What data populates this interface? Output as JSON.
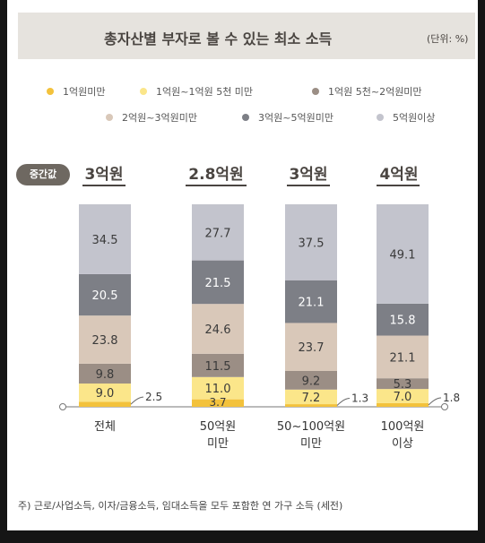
{
  "title": "총자산별 부자로 볼 수 있는 최소 소득",
  "unit": "(단위: %)",
  "median_label": "중간값",
  "footnote": "주) 근로/사업소득, 이자/금융소득, 임대소득을 모두 포함한 연 가구 소득 (세전)",
  "colors": {
    "title_bg": "#e6e3de",
    "c0": "#f3c23c",
    "c1": "#fbe68a",
    "c2": "#9b8e85",
    "c3": "#d9c8b9",
    "c4": "#7d7f86",
    "c5": "#c3c4cd"
  },
  "chart_data": {
    "type": "bar",
    "stacked": true,
    "orientation": "vertical",
    "categories": [
      "전체",
      "50억원 미만",
      "50~100억원 미만",
      "100억원 이상"
    ],
    "medians": [
      "3억원",
      "2.8억원",
      "3억원",
      "4억원"
    ],
    "series": [
      {
        "name": "1억원미만",
        "values": [
          2.5,
          3.7,
          1.3,
          1.8
        ]
      },
      {
        "name": "1억원~1억원 5천 미만",
        "values": [
          9.0,
          11.0,
          7.2,
          7.0
        ]
      },
      {
        "name": "1억원 5천~2억원미만",
        "values": [
          9.8,
          11.5,
          9.2,
          5.3
        ]
      },
      {
        "name": "2억원~3억원미만",
        "values": [
          23.8,
          24.6,
          23.7,
          21.1
        ]
      },
      {
        "name": "3억원~5억원미만",
        "values": [
          20.5,
          21.5,
          21.1,
          15.8
        ]
      },
      {
        "name": "5억원이상",
        "values": [
          34.5,
          27.7,
          37.5,
          49.1
        ]
      }
    ],
    "ylim": [
      0,
      100
    ],
    "grid": false,
    "legend_position": "top"
  }
}
